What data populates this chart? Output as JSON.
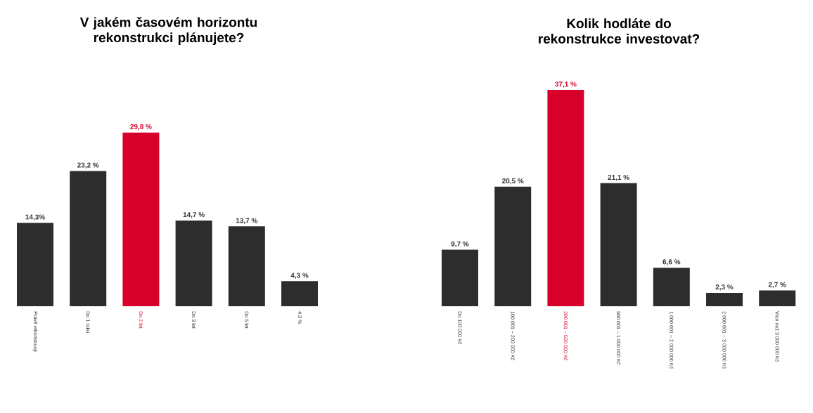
{
  "chart_data": [
    {
      "type": "bar",
      "title": "V jakém časovém horizontu rekonstrukci plánujete?",
      "categories": [
        "Právě rekonstruuji",
        "Do 1 roku",
        "Do 2 let",
        "Do 3 let",
        "Do 5 let",
        "4,3 %"
      ],
      "values": [
        14.3,
        23.2,
        29.8,
        14.7,
        13.7,
        4.3
      ],
      "value_labels": [
        "14,3%",
        "23,2 %",
        "29,8 %",
        "14,7 %",
        "13,7 %",
        "4,3 %"
      ],
      "colors": [
        "#2d2d2d",
        "#2d2d2d",
        "#d7002a",
        "#2d2d2d",
        "#2d2d2d",
        "#2d2d2d"
      ]
    },
    {
      "type": "bar",
      "title": "Kolik hodláte do rekonstrukce investovat?",
      "categories": [
        "Do 100 000 Kč",
        "100 001 – 200 000 Kč",
        "200 001 – 500 000 Kč",
        "500 001 – 1 000 000 Kč",
        "1 000 001 – 2 000 000 Kč",
        "2 000 001 – 3 000 000 Kč",
        "Více než 3 000 000 Kč"
      ],
      "values": [
        9.7,
        20.5,
        37.1,
        21.1,
        6.6,
        2.3,
        2.7
      ],
      "value_labels": [
        "9,7 %",
        "20,5 %",
        "37,1 %",
        "21,1 %",
        "6,6 %",
        "2,3 %",
        "2,7 %"
      ],
      "colors": [
        "#2d2d2d",
        "#2d2d2d",
        "#d7002a",
        "#2d2d2d",
        "#2d2d2d",
        "#2d2d2d",
        "#2d2d2d"
      ]
    }
  ]
}
